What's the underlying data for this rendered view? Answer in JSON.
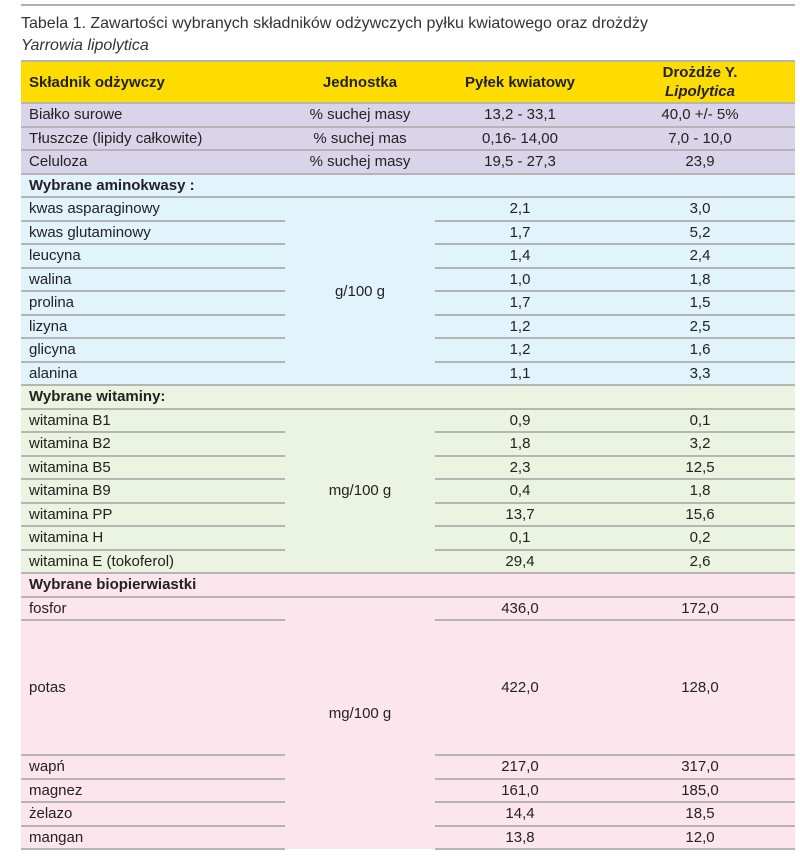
{
  "title": {
    "line1": "Tabela 1. Zawartości wybranych składników odżywczych pyłku kwiatowego oraz drożdży",
    "line2": "Yarrowia lipolytica"
  },
  "headers": {
    "c1": "Składnik odżywczy",
    "c2": "Jednostka",
    "c3": "Pyłek kwiatowy",
    "c4a": "Drożdże Y.",
    "c4b": "Lipolytica"
  },
  "basic": [
    {
      "name": "Białko surowe",
      "unit": "% suchej masy",
      "pollen": "13,2 - 33,1",
      "yeast": "40,0 +/- 5%"
    },
    {
      "name": "Tłuszcze (lipidy całkowite)",
      "unit": "% suchej mas",
      "pollen": "0,16- 14,00",
      "yeast": "7,0 - 10,0"
    },
    {
      "name": "Celuloza",
      "unit": "% suchej masy",
      "pollen": "19,5 - 27,3",
      "yeast": "23,9"
    }
  ],
  "amino": {
    "heading": "Wybrane aminokwasy :",
    "unit": "g/100 g",
    "rows": [
      {
        "name": "kwas asparaginowy",
        "pollen": "2,1",
        "yeast": "3,0"
      },
      {
        "name": "kwas glutaminowy",
        "pollen": "1,7",
        "yeast": "5,2"
      },
      {
        "name": "leucyna",
        "pollen": "1,4",
        "yeast": "2,4"
      },
      {
        "name": "walina",
        "pollen": "1,0",
        "yeast": "1,8"
      },
      {
        "name": "prolina",
        "pollen": "1,7",
        "yeast": "1,5"
      },
      {
        "name": "lizyna",
        "pollen": "1,2",
        "yeast": "2,5"
      },
      {
        "name": "glicyna",
        "pollen": "1,2",
        "yeast": "1,6"
      },
      {
        "name": "alanina",
        "pollen": "1,1",
        "yeast": "3,3"
      }
    ]
  },
  "vitamins": {
    "heading": "Wybrane witaminy:",
    "unit": "mg/100 g",
    "rows": [
      {
        "name": "witamina B1",
        "pollen": "0,9",
        "yeast": "0,1"
      },
      {
        "name": "witamina B2",
        "pollen": "1,8",
        "yeast": "3,2"
      },
      {
        "name": "witamina B5",
        "pollen": "2,3",
        "yeast": "12,5"
      },
      {
        "name": "witamina B9",
        "pollen": "0,4",
        "yeast": "1,8"
      },
      {
        "name": "witamina PP",
        "pollen": "13,7",
        "yeast": "15,6"
      },
      {
        "name": "witamina H",
        "pollen": "0,1",
        "yeast": "0,2"
      },
      {
        "name": "witamina E (tokoferol)",
        "pollen": "29,4",
        "yeast": "2,6"
      }
    ]
  },
  "elements": {
    "heading": "Wybrane biopierwiastki",
    "unit": "mg/100 g",
    "rows": [
      {
        "name": "fosfor",
        "pollen": "436,0",
        "yeast": "172,0"
      },
      {
        "name": "potas",
        "pollen": "422,0",
        "yeast": "128,0"
      },
      {
        "name": "wapń",
        "pollen": "217,0",
        "yeast": "317,0"
      },
      {
        "name": "magnez",
        "pollen": "161,0",
        "yeast": "185,0"
      },
      {
        "name": "żelazo",
        "pollen": "14,4",
        "yeast": "18,5"
      },
      {
        "name": "mangan",
        "pollen": "13,8",
        "yeast": "12,0"
      }
    ]
  },
  "colors": {
    "header": "#ffdc00",
    "basic": "#d9d4e9",
    "amino": "#e1f3fb",
    "vitamins": "#eaf4e1",
    "elements": "#fde5ee"
  }
}
